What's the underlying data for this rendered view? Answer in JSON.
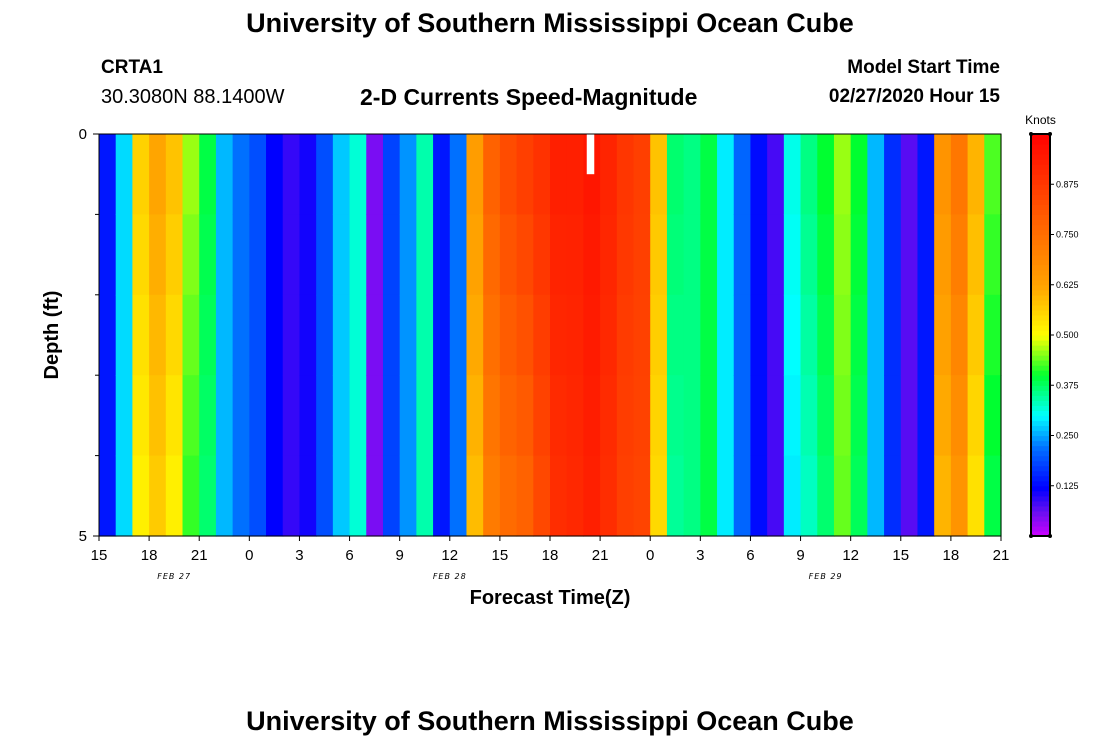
{
  "header": {
    "title": "University of Southern Mississippi Ocean Cube",
    "station_id": "CRTA1",
    "station_coords": "30.3080N 88.1400W",
    "chart_title": "2-D Currents Speed-Magnitude",
    "model_start_label": "Model Start Time",
    "model_start_value": "02/27/2020 Hour 15"
  },
  "footer": {
    "title": "University of Southern Mississippi Ocean Cube"
  },
  "chart_data": {
    "type": "heatmap",
    "title": "2-D Currents Speed-Magnitude",
    "xlabel": "Forecast Time(Z)",
    "ylabel": "Depth (ft)",
    "x_start_hour": 0,
    "x_hours": 54,
    "x_ticks": [
      {
        "hour": 0,
        "label": "15"
      },
      {
        "hour": 3,
        "label": "18"
      },
      {
        "hour": 6,
        "label": "21"
      },
      {
        "hour": 9,
        "label": "0"
      },
      {
        "hour": 12,
        "label": "3"
      },
      {
        "hour": 15,
        "label": "6"
      },
      {
        "hour": 18,
        "label": "9"
      },
      {
        "hour": 21,
        "label": "12"
      },
      {
        "hour": 24,
        "label": "15"
      },
      {
        "hour": 27,
        "label": "18"
      },
      {
        "hour": 30,
        "label": "21"
      },
      {
        "hour": 33,
        "label": "0"
      },
      {
        "hour": 36,
        "label": "3"
      },
      {
        "hour": 39,
        "label": "6"
      },
      {
        "hour": 42,
        "label": "9"
      },
      {
        "hour": 45,
        "label": "12"
      },
      {
        "hour": 48,
        "label": "15"
      },
      {
        "hour": 51,
        "label": "18"
      },
      {
        "hour": 54,
        "label": "21"
      }
    ],
    "date_labels": [
      {
        "hour": 4.5,
        "label": "FEB 27"
      },
      {
        "hour": 21,
        "label": "FEB 28"
      },
      {
        "hour": 43.5,
        "label": "FEB 29"
      }
    ],
    "y_range": [
      0,
      5
    ],
    "y_tick_labels": [
      {
        "value": 0,
        "label": "0"
      },
      {
        "value": 5,
        "label": "5"
      }
    ],
    "y_minor_ticks": [
      1,
      2,
      3,
      4
    ],
    "depth_rows": 5,
    "colorbar": {
      "title": "Knots",
      "range": [
        0.0,
        1.0
      ],
      "ticks": [
        0.125,
        0.25,
        0.375,
        0.5,
        0.625,
        0.75,
        0.875
      ],
      "tick_labels": [
        "0.125",
        "0.250",
        "0.375",
        "0.500",
        "0.625",
        "0.750",
        "0.875"
      ]
    },
    "speed_by_hour": [
      0.14,
      0.28,
      0.52,
      0.57,
      0.52,
      0.42,
      0.37,
      0.26,
      0.22,
      0.19,
      0.12,
      0.09,
      0.11,
      0.19,
      0.27,
      0.32,
      0.05,
      0.18,
      0.24,
      0.34,
      0.14,
      0.22,
      0.59,
      0.72,
      0.76,
      0.78,
      0.84,
      0.9,
      0.91,
      0.93,
      0.9,
      0.86,
      0.85,
      0.55,
      0.35,
      0.36,
      0.39,
      0.29,
      0.21,
      0.13,
      0.08,
      0.29,
      0.33,
      0.37,
      0.44,
      0.38,
      0.26,
      0.16,
      0.07,
      0.14,
      0.6,
      0.66,
      0.54,
      0.39
    ],
    "surface_bias": [
      0,
      0,
      0.04,
      0.05,
      0.06,
      0.04,
      0.02,
      0,
      0,
      0,
      0,
      0,
      0,
      0,
      0,
      0,
      0,
      0,
      0,
      0,
      0,
      0,
      0.05,
      0.06,
      0.07,
      0.08,
      0.05,
      0.03,
      0.02,
      0.02,
      0.02,
      0.02,
      0.01,
      0.03,
      0.02,
      0,
      0,
      0,
      0,
      0,
      0,
      0.02,
      0.03,
      0.03,
      0.02,
      0.02,
      0,
      0,
      0,
      0,
      0.06,
      0.07,
      0.06,
      0.04
    ],
    "missing_cells": [
      {
        "hour": 29,
        "row": 0
      }
    ]
  }
}
